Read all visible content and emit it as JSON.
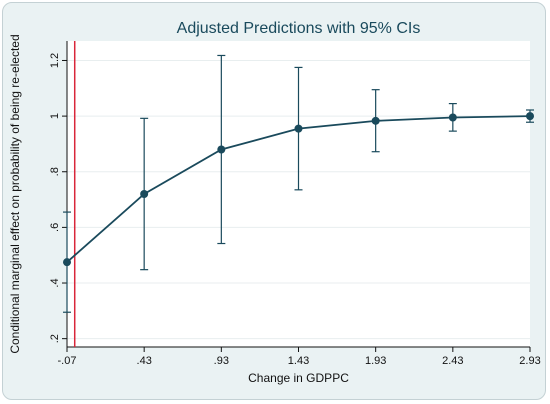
{
  "chart_data": {
    "type": "line",
    "title": "Adjusted Predictions with 95% CIs",
    "xlabel": "Change in GDPPC",
    "ylabel": "Conditional marginal effect on probability of being re-elected",
    "x": [
      -0.07,
      0.43,
      0.93,
      1.43,
      1.93,
      2.43,
      2.93
    ],
    "x_tick_labels": [
      "-.07",
      ".43",
      ".93",
      "1.43",
      "1.93",
      "2.43",
      "2.93"
    ],
    "y_ticks": [
      0.2,
      0.4,
      0.6,
      0.8,
      1.0,
      1.2
    ],
    "y_tick_labels": [
      ".2",
      ".4",
      ".6",
      ".8",
      "1",
      "1.2"
    ],
    "ylim": [
      0.17,
      1.27
    ],
    "xlim": [
      -0.07,
      2.93
    ],
    "series": [
      {
        "values": [
          0.475,
          0.72,
          0.88,
          0.955,
          0.983,
          0.995,
          1.0
        ],
        "ci_low": [
          0.295,
          0.448,
          0.542,
          0.735,
          0.872,
          0.946,
          0.978
        ],
        "ci_high": [
          0.655,
          0.992,
          1.218,
          1.175,
          1.095,
          1.045,
          1.022
        ]
      }
    ],
    "reference_line_x": -0.02,
    "grid": true,
    "colors": {
      "series": "#1a4a5c",
      "reference_line": "#d9263a",
      "grid": "#e8eeef",
      "plot_bg": "#ffffff",
      "outer_bg": "#eaf2f3"
    }
  }
}
